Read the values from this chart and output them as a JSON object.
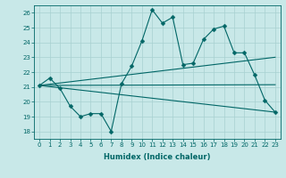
{
  "title": "",
  "xlabel": "Humidex (Indice chaleur)",
  "bg_color": "#c8e8e8",
  "line_color": "#006666",
  "grid_color": "#a8d0d0",
  "xlim": [
    -0.5,
    23.5
  ],
  "ylim": [
    17.5,
    26.5
  ],
  "yticks": [
    18,
    19,
    20,
    21,
    22,
    23,
    24,
    25,
    26
  ],
  "xticks": [
    0,
    1,
    2,
    3,
    4,
    5,
    6,
    7,
    8,
    9,
    10,
    11,
    12,
    13,
    14,
    15,
    16,
    17,
    18,
    19,
    20,
    21,
    22,
    23
  ],
  "series1_x": [
    0,
    1,
    2,
    3,
    4,
    5,
    6,
    7,
    8,
    9,
    10,
    11,
    12,
    13,
    14,
    15,
    16,
    17,
    18,
    19,
    20,
    21,
    22,
    23
  ],
  "series1_y": [
    21.1,
    21.6,
    20.9,
    19.7,
    19.0,
    19.2,
    19.2,
    18.0,
    21.2,
    22.4,
    24.1,
    26.2,
    25.3,
    25.7,
    22.5,
    22.6,
    24.2,
    24.9,
    25.1,
    23.3,
    23.3,
    21.8,
    20.1,
    19.3
  ],
  "series2_x": [
    0,
    23
  ],
  "series2_y": [
    21.1,
    23.0
  ],
  "series3_x": [
    0,
    23
  ],
  "series3_y": [
    21.1,
    19.3
  ],
  "series4_x": [
    0,
    23
  ],
  "series4_y": [
    21.1,
    21.15
  ],
  "tick_fontsize": 5,
  "xlabel_fontsize": 6,
  "marker_size": 2.5,
  "line_width": 0.8
}
